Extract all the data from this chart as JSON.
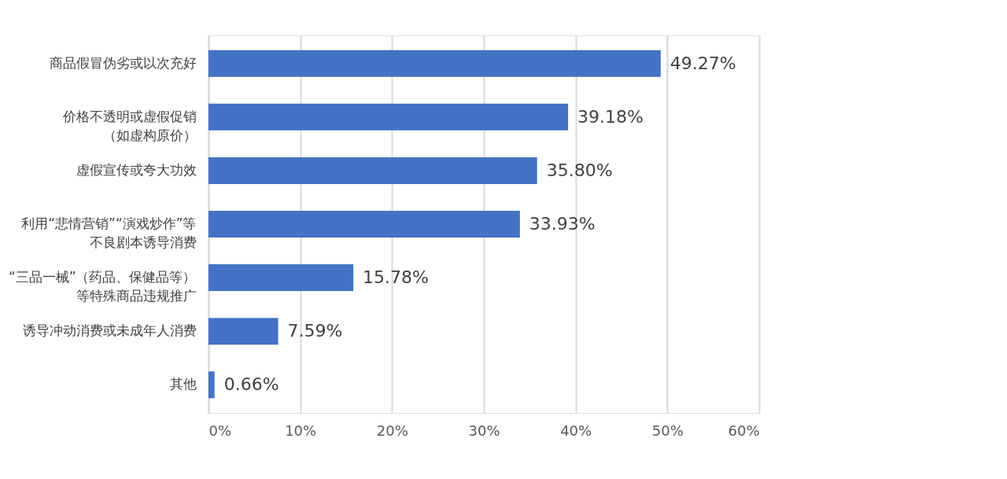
{
  "chart_data": {
    "type": "bar",
    "orientation": "horizontal",
    "categories": [
      "商品假冒伪劣或以次充好",
      "价格不透明或虚假促销（如虚构原价）",
      "虚假宣传或夸大功效",
      "利用“悲情营销”“演戏炒作”等不良剧本诱导消费",
      "“三品一械”（药品、保健品等）等特殊商品违规推广",
      "诱导冲动消费或未成年人消费",
      "其他"
    ],
    "values": [
      49.27,
      39.18,
      35.8,
      33.93,
      15.78,
      7.59,
      0.66
    ],
    "value_labels": [
      "49.27%",
      "39.18%",
      "35.80%",
      "33.93%",
      "15.78%",
      "7.59%",
      "0.66%"
    ],
    "color": "#4472c4",
    "xlim": [
      0,
      60
    ],
    "xticks": [
      {
        "value": 0,
        "label": "0%"
      },
      {
        "value": 10,
        "label": "10%"
      },
      {
        "value": 20,
        "label": "20%"
      },
      {
        "value": 30,
        "label": "30%"
      },
      {
        "value": 40,
        "label": "40%"
      },
      {
        "value": 50,
        "label": "50%"
      },
      {
        "value": 60,
        "label": "60%"
      }
    ],
    "grid": "x"
  }
}
